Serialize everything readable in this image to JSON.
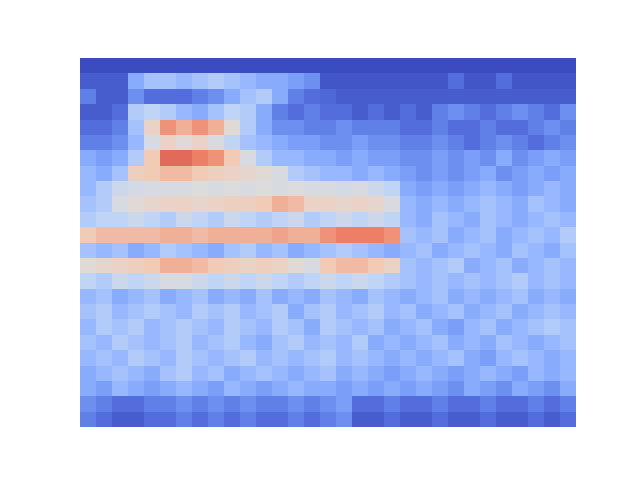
{
  "chart_data": {
    "type": "heatmap",
    "tick_labels": false,
    "zlim": [
      0,
      1
    ],
    "cells": [
      [
        0,
        0,
        0,
        0,
        0,
        0,
        0,
        0,
        0,
        0,
        0,
        0,
        0,
        0,
        0,
        0,
        0,
        0,
        0,
        0,
        0,
        0,
        0,
        0,
        0,
        0,
        0,
        0,
        0,
        0,
        0
      ],
      [
        0.05,
        0.05,
        0.05,
        0.3,
        0.4,
        0.4,
        0.35,
        0.4,
        0.45,
        0.4,
        0.35,
        0.3,
        0.3,
        0.25,
        0.2,
        0.03,
        0.03,
        0.03,
        0.03,
        0.03,
        0.03,
        0.03,
        0.03,
        0.1,
        0.03,
        0.03,
        0.1,
        0.03,
        0.03,
        0.03,
        0.03
      ],
      [
        0.15,
        0.05,
        0.05,
        0.2,
        0.1,
        0.1,
        0.1,
        0.15,
        0.2,
        0.3,
        0.4,
        0.45,
        0.3,
        0.15,
        0.1,
        0.08,
        0.05,
        0.05,
        0.05,
        0.05,
        0.05,
        0.05,
        0.05,
        0.05,
        0.05,
        0.05,
        0.05,
        0.05,
        0.05,
        0.05,
        0.05
      ],
      [
        0.05,
        0.05,
        0.1,
        0.45,
        0.5,
        0.45,
        0.35,
        0.3,
        0.4,
        0.5,
        0.45,
        0.3,
        0.15,
        0.1,
        0.15,
        0.1,
        0.1,
        0.05,
        0.1,
        0.05,
        0.1,
        0.05,
        0.15,
        0.2,
        0.15,
        0.1,
        0.15,
        0.2,
        0.15,
        0.1,
        0.2
      ],
      [
        0.1,
        0.1,
        0.15,
        0.4,
        0.7,
        0.85,
        0.8,
        0.85,
        0.8,
        0.65,
        0.45,
        0.3,
        0.2,
        0.2,
        0.15,
        0.15,
        0.2,
        0.15,
        0.15,
        0.15,
        0.1,
        0.1,
        0.15,
        0.1,
        0.1,
        0.15,
        0.1,
        0.1,
        0.15,
        0.2,
        0.15
      ],
      [
        0.15,
        0.15,
        0.2,
        0.35,
        0.6,
        0.7,
        0.65,
        0.7,
        0.6,
        0.5,
        0.4,
        0.35,
        0.3,
        0.25,
        0.25,
        0.2,
        0.2,
        0.25,
        0.2,
        0.2,
        0.15,
        0.15,
        0.2,
        0.15,
        0.1,
        0.15,
        0.2,
        0.15,
        0.1,
        0.15,
        0.2
      ],
      [
        0.3,
        0.25,
        0.3,
        0.45,
        0.75,
        0.9,
        0.9,
        0.88,
        0.85,
        0.75,
        0.6,
        0.45,
        0.35,
        0.35,
        0.3,
        0.3,
        0.25,
        0.3,
        0.25,
        0.25,
        0.2,
        0.2,
        0.25,
        0.2,
        0.25,
        0.2,
        0.3,
        0.2,
        0.25,
        0.3,
        0.25
      ],
      [
        0.35,
        0.3,
        0.4,
        0.72,
        0.75,
        0.78,
        0.78,
        0.75,
        0.72,
        0.7,
        0.68,
        0.65,
        0.6,
        0.45,
        0.4,
        0.35,
        0.35,
        0.3,
        0.35,
        0.3,
        0.25,
        0.2,
        0.25,
        0.2,
        0.25,
        0.3,
        0.2,
        0.25,
        0.3,
        0.25,
        0.3
      ],
      [
        0.35,
        0.45,
        0.55,
        0.58,
        0.6,
        0.6,
        0.6,
        0.62,
        0.6,
        0.62,
        0.6,
        0.62,
        0.6,
        0.62,
        0.6,
        0.6,
        0.58,
        0.6,
        0.55,
        0.5,
        0.3,
        0.25,
        0.3,
        0.25,
        0.3,
        0.35,
        0.3,
        0.25,
        0.3,
        0.35,
        0.3
      ],
      [
        0.4,
        0.45,
        0.6,
        0.65,
        0.68,
        0.7,
        0.7,
        0.68,
        0.7,
        0.72,
        0.72,
        0.75,
        0.8,
        0.78,
        0.7,
        0.7,
        0.68,
        0.7,
        0.68,
        0.6,
        0.35,
        0.3,
        0.35,
        0.3,
        0.35,
        0.4,
        0.35,
        0.3,
        0.4,
        0.35,
        0.3
      ],
      [
        0.45,
        0.5,
        0.5,
        0.55,
        0.5,
        0.45,
        0.55,
        0.5,
        0.45,
        0.55,
        0.5,
        0.45,
        0.5,
        0.55,
        0.45,
        0.5,
        0.55,
        0.5,
        0.55,
        0.5,
        0.35,
        0.3,
        0.4,
        0.35,
        0.3,
        0.4,
        0.35,
        0.3,
        0.35,
        0.4,
        0.35
      ],
      [
        0.75,
        0.78,
        0.78,
        0.78,
        0.78,
        0.8,
        0.8,
        0.78,
        0.8,
        0.8,
        0.8,
        0.8,
        0.82,
        0.8,
        0.8,
        0.85,
        0.88,
        0.88,
        0.88,
        0.85,
        0.4,
        0.35,
        0.4,
        0.3,
        0.35,
        0.4,
        0.3,
        0.35,
        0.4,
        0.35,
        0.45
      ],
      [
        0.4,
        0.35,
        0.4,
        0.3,
        0.35,
        0.45,
        0.4,
        0.35,
        0.3,
        0.4,
        0.45,
        0.35,
        0.4,
        0.3,
        0.35,
        0.4,
        0.45,
        0.4,
        0.35,
        0.3,
        0.35,
        0.4,
        0.3,
        0.35,
        0.4,
        0.35,
        0.3,
        0.4,
        0.35,
        0.3,
        0.4
      ],
      [
        0.65,
        0.68,
        0.7,
        0.72,
        0.75,
        0.8,
        0.8,
        0.78,
        0.75,
        0.72,
        0.7,
        0.72,
        0.7,
        0.65,
        0.6,
        0.75,
        0.78,
        0.78,
        0.75,
        0.7,
        0.4,
        0.35,
        0.4,
        0.45,
        0.3,
        0.35,
        0.4,
        0.3,
        0.35,
        0.4,
        0.35
      ],
      [
        0.5,
        0.45,
        0.55,
        0.5,
        0.55,
        0.6,
        0.6,
        0.55,
        0.5,
        0.55,
        0.5,
        0.55,
        0.5,
        0.45,
        0.5,
        0.55,
        0.5,
        0.55,
        0.5,
        0.45,
        0.4,
        0.35,
        0.4,
        0.35,
        0.4,
        0.35,
        0.4,
        0.45,
        0.35,
        0.4,
        0.35
      ],
      [
        0.35,
        0.4,
        0.3,
        0.35,
        0.4,
        0.3,
        0.35,
        0.4,
        0.3,
        0.35,
        0.3,
        0.4,
        0.3,
        0.35,
        0.3,
        0.4,
        0.35,
        0.3,
        0.4,
        0.35,
        0.3,
        0.35,
        0.4,
        0.3,
        0.35,
        0.3,
        0.35,
        0.4,
        0.3,
        0.35,
        0.3
      ],
      [
        0.4,
        0.45,
        0.35,
        0.4,
        0.45,
        0.4,
        0.35,
        0.45,
        0.4,
        0.45,
        0.35,
        0.4,
        0.45,
        0.3,
        0.4,
        0.45,
        0.35,
        0.4,
        0.45,
        0.35,
        0.4,
        0.3,
        0.35,
        0.4,
        0.3,
        0.35,
        0.4,
        0.3,
        0.35,
        0.4,
        0.35
      ],
      [
        0.35,
        0.45,
        0.4,
        0.45,
        0.35,
        0.4,
        0.45,
        0.4,
        0.35,
        0.45,
        0.4,
        0.35,
        0.45,
        0.4,
        0.3,
        0.45,
        0.4,
        0.35,
        0.4,
        0.3,
        0.35,
        0.4,
        0.3,
        0.25,
        0.35,
        0.4,
        0.3,
        0.35,
        0.4,
        0.45,
        0.4
      ],
      [
        0.4,
        0.35,
        0.45,
        0.4,
        0.35,
        0.4,
        0.45,
        0.35,
        0.4,
        0.45,
        0.35,
        0.3,
        0.4,
        0.45,
        0.35,
        0.4,
        0.35,
        0.45,
        0.3,
        0.35,
        0.3,
        0.35,
        0.4,
        0.3,
        0.35,
        0.3,
        0.4,
        0.35,
        0.3,
        0.35,
        0.4
      ],
      [
        0.35,
        0.4,
        0.35,
        0.45,
        0.4,
        0.35,
        0.45,
        0.4,
        0.35,
        0.4,
        0.45,
        0.35,
        0.4,
        0.35,
        0.4,
        0.45,
        0.35,
        0.4,
        0.35,
        0.3,
        0.35,
        0.3,
        0.35,
        0.4,
        0.3,
        0.25,
        0.35,
        0.4,
        0.35,
        0.3,
        0.35
      ],
      [
        0.3,
        0.35,
        0.4,
        0.35,
        0.3,
        0.4,
        0.45,
        0.35,
        0.4,
        0.3,
        0.35,
        0.4,
        0.35,
        0.3,
        0.35,
        0.4,
        0.3,
        0.35,
        0.3,
        0.25,
        0.3,
        0.35,
        0.3,
        0.25,
        0.3,
        0.35,
        0.3,
        0.25,
        0.35,
        0.3,
        0.35
      ],
      [
        0.3,
        0.25,
        0.35,
        0.3,
        0.25,
        0.3,
        0.35,
        0.3,
        0.25,
        0.35,
        0.3,
        0.25,
        0.3,
        0.35,
        0.3,
        0.3,
        0.25,
        0.3,
        0.25,
        0.3,
        0.25,
        0.3,
        0.25,
        0.2,
        0.3,
        0.25,
        0.2,
        0.3,
        0.25,
        0.2,
        0.3
      ],
      [
        0.2,
        0.15,
        0.1,
        0.1,
        0.15,
        0.15,
        0.2,
        0.15,
        0.2,
        0.15,
        0.2,
        0.15,
        0.15,
        0.2,
        0.15,
        0.2,
        0.25,
        0.1,
        0.1,
        0.15,
        0.1,
        0.1,
        0.15,
        0.1,
        0.1,
        0.15,
        0.1,
        0.1,
        0.15,
        0.1,
        0.15
      ],
      [
        0.15,
        0.1,
        0.05,
        0.05,
        0.1,
        0.1,
        0.15,
        0.1,
        0.15,
        0.1,
        0.15,
        0.1,
        0.1,
        0.15,
        0.1,
        0.15,
        0.2,
        0.05,
        0.05,
        0.1,
        0.05,
        0.05,
        0.1,
        0.05,
        0.05,
        0.1,
        0.05,
        0.05,
        0.1,
        0.05,
        0.1
      ]
    ]
  }
}
